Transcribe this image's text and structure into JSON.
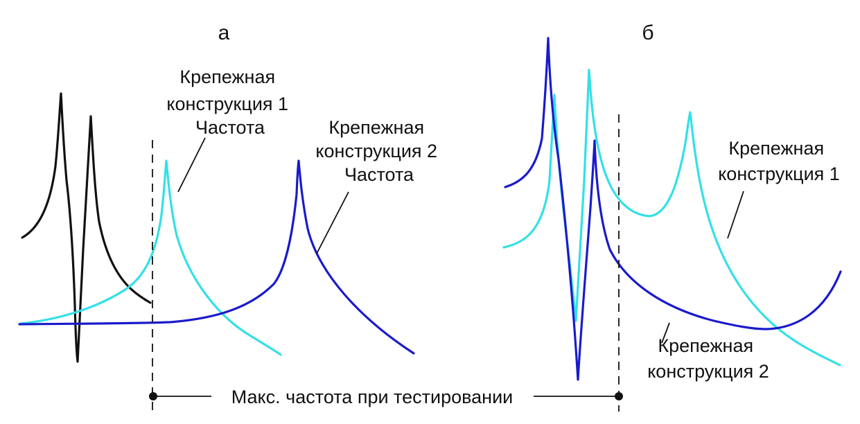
{
  "panels": {
    "a": {
      "letter": "а",
      "label_mount1": [
        "Крепежная",
        "конструкция 1",
        "Частота"
      ],
      "label_mount2": [
        "Крепежная",
        "конструкция 2",
        "Частота"
      ]
    },
    "b": {
      "letter": "б",
      "label_mount1": [
        "Крепежная",
        "конструкция 1"
      ],
      "label_mount2": [
        "Крепежная",
        "конструкция 2"
      ]
    }
  },
  "bottom_caption": "Макс. частота при тестировании",
  "colors": {
    "black_curve": "#111111",
    "cyan_curve": "#33e0e6",
    "blue_curve": "#1a1acc"
  }
}
